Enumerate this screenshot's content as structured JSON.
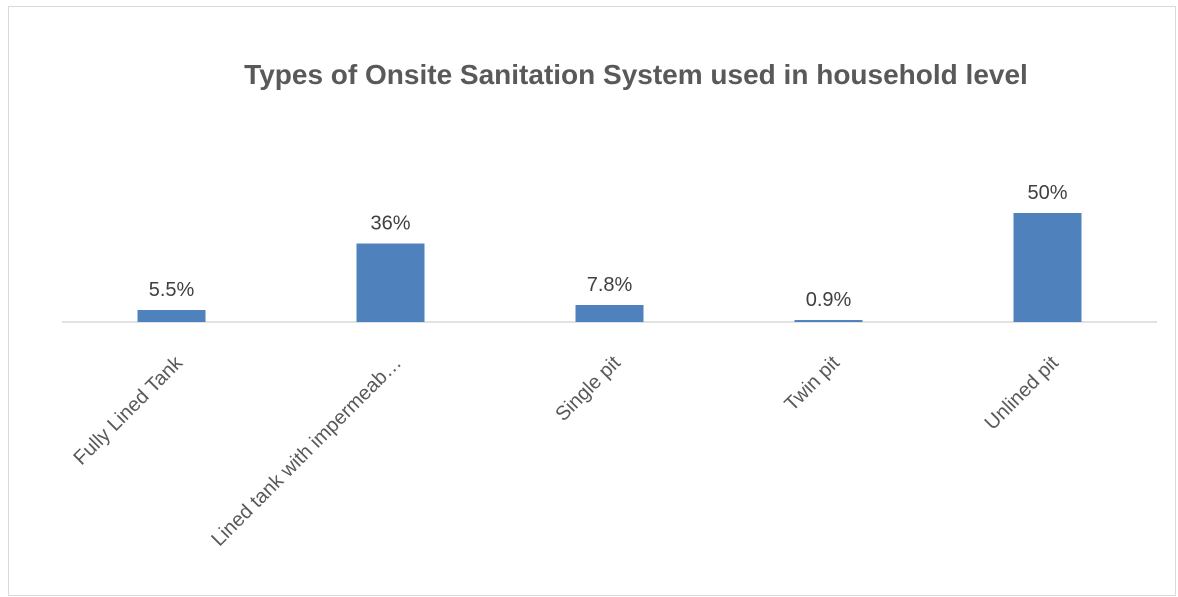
{
  "chart_data": {
    "type": "bar",
    "title": "Types of Onsite Sanitation System used in household level",
    "categories": [
      "Fully Lined Tank",
      "Lined tank with impermeab…",
      "Single pit",
      "Twin pit",
      "Unlined pit"
    ],
    "values": [
      5.5,
      36,
      7.8,
      0.9,
      50
    ],
    "data_labels": [
      "5.5%",
      "36%",
      "7.8%",
      "0.9%",
      "50%"
    ],
    "unit": "%",
    "bar_color": "#4f81bd",
    "axis_color": "#d9d9d9",
    "grid": false,
    "legend": "none"
  }
}
